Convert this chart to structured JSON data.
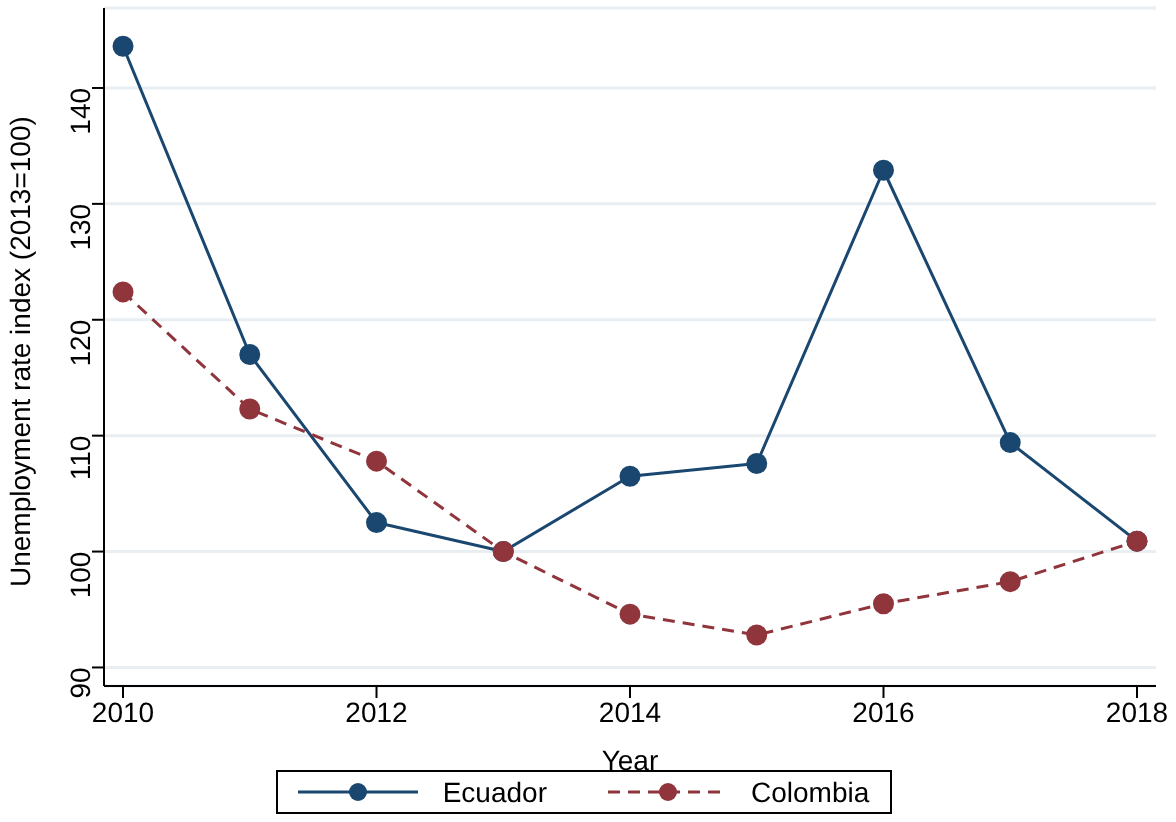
{
  "chart_data": {
    "type": "line",
    "xlabel": "Year",
    "ylabel": "Unemployment rate index (2013=100)",
    "x": [
      2010,
      2011,
      2012,
      2013,
      2014,
      2015,
      2016,
      2017,
      2018
    ],
    "series": [
      {
        "name": "Ecuador",
        "color": "#1a476f",
        "line_style": "solid",
        "values": [
          143.6,
          117.0,
          102.5,
          100,
          106.5,
          107.6,
          132.9,
          109.4,
          100.9
        ]
      },
      {
        "name": "Colombia",
        "color": "#90353b",
        "line_style": "dashed",
        "values": [
          122.4,
          112.3,
          107.8,
          100,
          94.6,
          92.8,
          95.5,
          97.4,
          100.9
        ]
      }
    ],
    "xlim": [
      2009.85,
      2018.15
    ],
    "xticks": [
      2010,
      2012,
      2014,
      2016,
      2018
    ],
    "ylim": [
      88.4,
      146.9
    ],
    "yticks": [
      90,
      100,
      110,
      120,
      130,
      140
    ],
    "grid": "y",
    "legend": "bottom",
    "marker": "circle"
  }
}
